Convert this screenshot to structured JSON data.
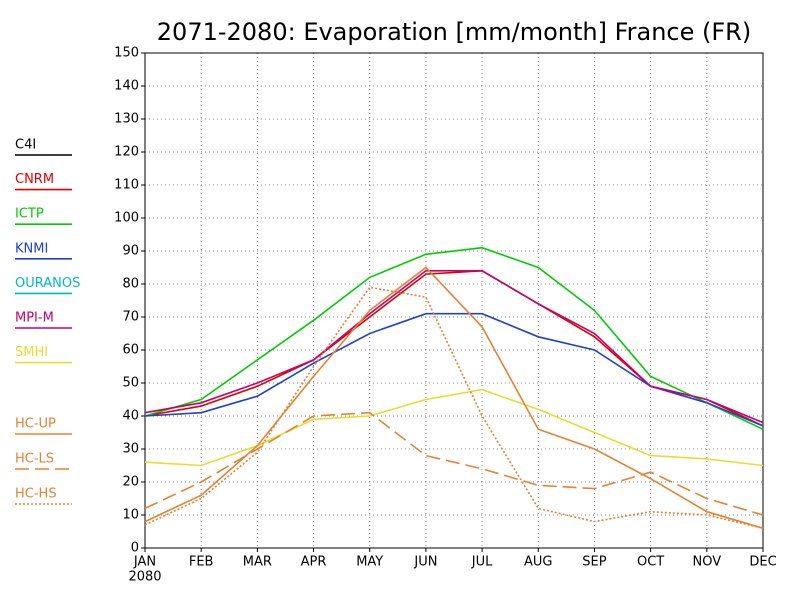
{
  "chart_data": {
    "type": "line",
    "title": "2071-2080: Evaporation [mm/month] France (FR)",
    "categories": [
      "JAN",
      "FEB",
      "MAR",
      "APR",
      "MAY",
      "JUN",
      "JUL",
      "AUG",
      "SEP",
      "OCT",
      "NOV",
      "DEC"
    ],
    "year_label": "2080",
    "ylim": [
      0,
      150
    ],
    "yticks": [
      0,
      10,
      20,
      30,
      40,
      50,
      60,
      70,
      80,
      90,
      100,
      110,
      120,
      130,
      140,
      150
    ],
    "grid": true,
    "legend": "left",
    "series": [
      {
        "name": "C4I",
        "color": "#000000",
        "dash": "solid",
        "values": [
          null,
          null,
          null,
          null,
          null,
          null,
          null,
          null,
          null,
          null,
          null,
          null
        ]
      },
      {
        "name": "CNRM",
        "color": "#e00000",
        "dash": "solid",
        "values": [
          40,
          43,
          49,
          57,
          70,
          83,
          84,
          74,
          64,
          49,
          45,
          37
        ]
      },
      {
        "name": "ICTP",
        "color": "#00cc00",
        "dash": "solid",
        "values": [
          40,
          45,
          57,
          69,
          82,
          89,
          91,
          85,
          72,
          52,
          44,
          36
        ]
      },
      {
        "name": "KNMI",
        "color": "#2040d0",
        "dash": "solid",
        "values": [
          40,
          41,
          46,
          56,
          65,
          71,
          71,
          64,
          60,
          49,
          44,
          37
        ]
      },
      {
        "name": "OURANOS",
        "color": "#00b8c8",
        "dash": "solid",
        "values": [
          null,
          null,
          null,
          null,
          null,
          null,
          null,
          null,
          null,
          null,
          null,
          null
        ]
      },
      {
        "name": "MPI-M",
        "color": "#c8006e",
        "dash": "solid",
        "values": [
          41,
          44,
          50,
          57,
          71,
          84,
          84,
          74,
          65,
          49,
          45,
          38
        ]
      },
      {
        "name": "SMHI",
        "color": "#e6dc32",
        "dash": "solid",
        "values": [
          26,
          25,
          31,
          39,
          40,
          45,
          48,
          42,
          35,
          28,
          27,
          25
        ]
      },
      {
        "name": "HC-UP",
        "color": "#e68232",
        "dash": "solid",
        "values": [
          8,
          16,
          31,
          52,
          72,
          85,
          67,
          36,
          30,
          21,
          11,
          6
        ]
      },
      {
        "name": "HC-LS",
        "color": "#e68232",
        "dash": "dashed",
        "values": [
          12,
          20,
          30,
          40,
          41,
          28,
          24,
          19,
          18,
          23,
          15,
          10
        ]
      },
      {
        "name": "HC-HS",
        "color": "#e68232",
        "dash": "dotted",
        "values": [
          7,
          15,
          29,
          55,
          79,
          76,
          40,
          12,
          8,
          11,
          10,
          6
        ]
      }
    ]
  }
}
